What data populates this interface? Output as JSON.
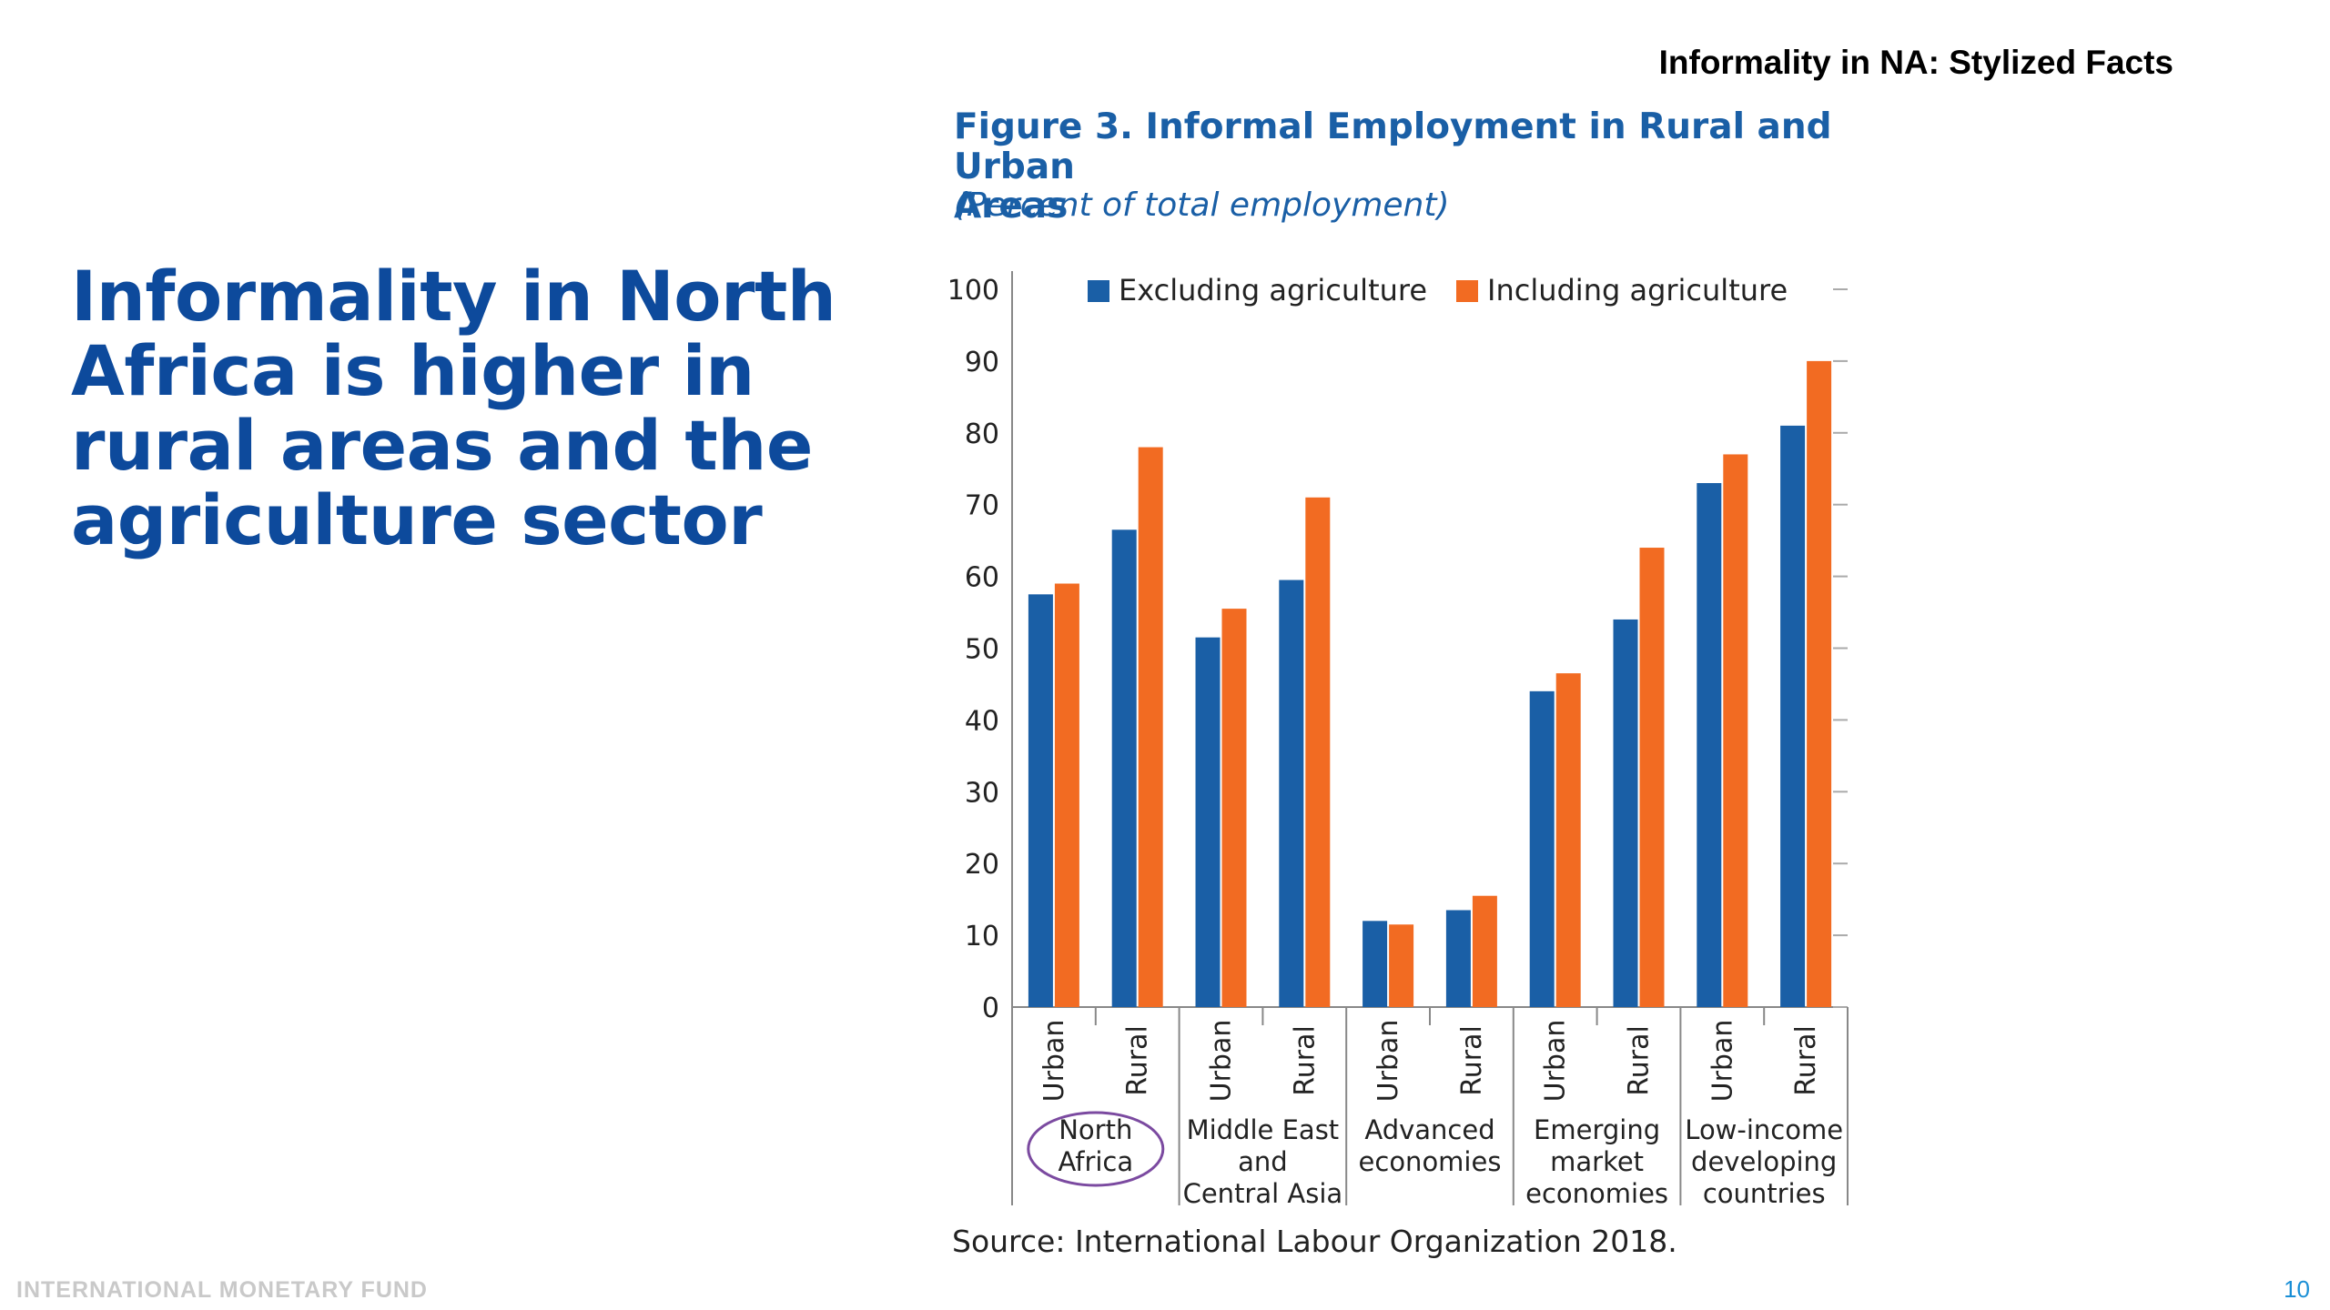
{
  "slide": {
    "header_title": "Informality in NA: Stylized Facts",
    "headline_lines": [
      "Informality in North",
      "Africa is higher in",
      "rural areas and the",
      "agriculture sector"
    ],
    "footer_org": "INTERNATIONAL MONETARY FUND",
    "page_number": "10"
  },
  "figure": {
    "title_lines": [
      "Figure 3. Informal Employment in Rural and Urban",
      "Areas"
    ],
    "subtitle": "(Percent of total employment)",
    "source": "Source: International Labour Organization 2018."
  },
  "chart_data": {
    "type": "bar",
    "title": "Figure 3. Informal Employment in Rural and Urban Areas",
    "subtitle": "(Percent of total employment)",
    "ylim": [
      0,
      100
    ],
    "yticks": [
      0,
      10,
      20,
      30,
      40,
      50,
      60,
      70,
      80,
      90,
      100
    ],
    "legend_position": "top",
    "categories": [
      "Urban",
      "Rural",
      "Urban",
      "Rural",
      "Urban",
      "Rural",
      "Urban",
      "Rural",
      "Urban",
      "Rural"
    ],
    "groups": [
      {
        "label_lines": [
          "North",
          "Africa"
        ],
        "highlighted": true
      },
      {
        "label_lines": [
          "Middle East",
          "and",
          "Central Asia"
        ],
        "highlighted": false
      },
      {
        "label_lines": [
          "Advanced",
          "economies"
        ],
        "highlighted": false
      },
      {
        "label_lines": [
          "Emerging",
          "market",
          "economies"
        ],
        "highlighted": false
      },
      {
        "label_lines": [
          "Low-income",
          "developing",
          "countries"
        ],
        "highlighted": false
      }
    ],
    "series": [
      {
        "name": "Excluding agriculture",
        "color": "#1a5fa6",
        "values": [
          57.5,
          66.5,
          51.5,
          59.5,
          12,
          13.5,
          44,
          54,
          73,
          81
        ]
      },
      {
        "name": "Including agriculture",
        "color": "#f26b22",
        "values": [
          59,
          78,
          55.5,
          71,
          11.5,
          15.5,
          46.5,
          64,
          77,
          90
        ]
      }
    ],
    "highlight_color": "#7b4aa0"
  }
}
